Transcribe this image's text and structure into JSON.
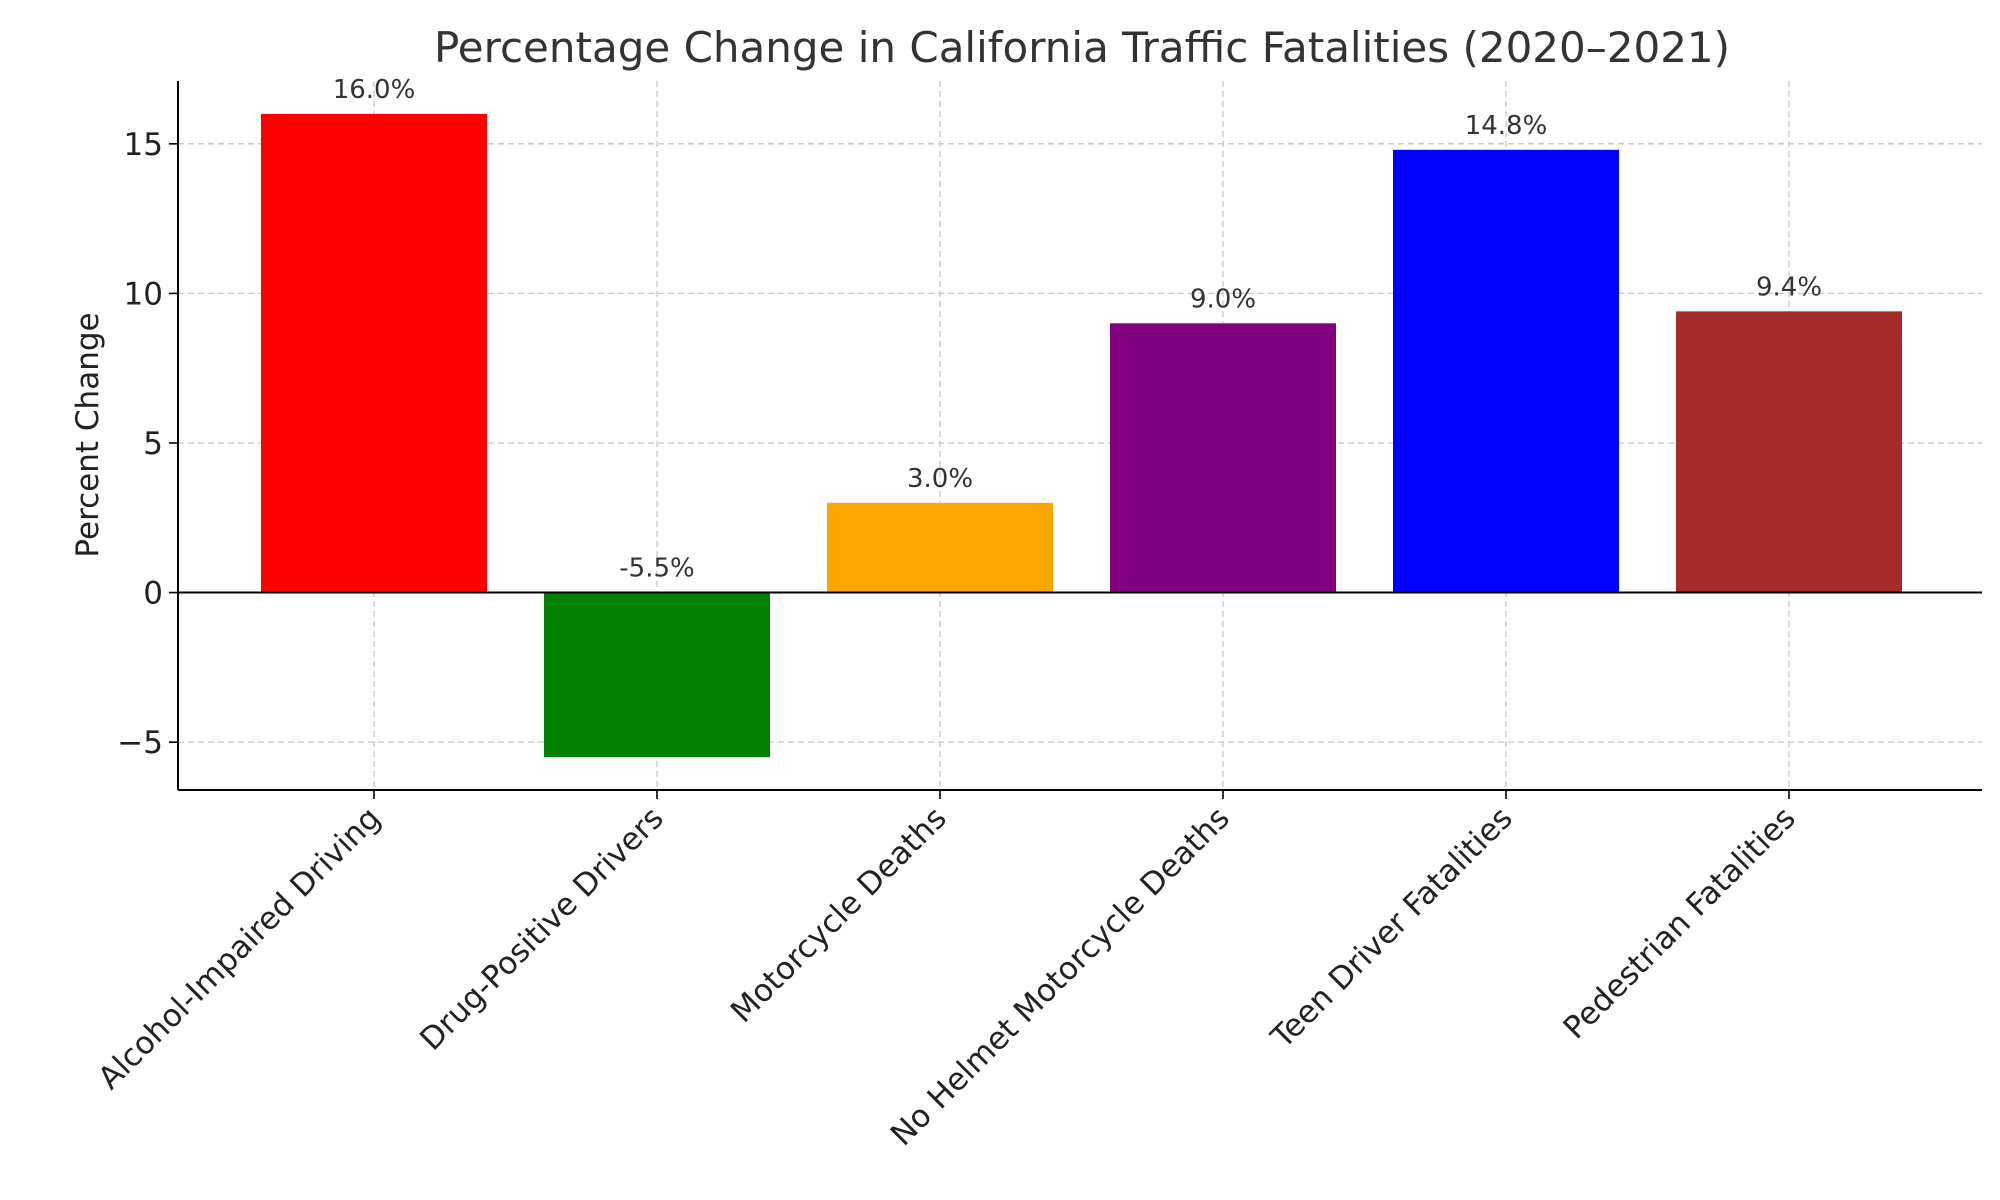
{
  "chart_data": {
    "type": "bar",
    "title": "Percentage Change in California Traffic Fatalities (2020–2021)",
    "xlabel": "",
    "ylabel": "Percent Change",
    "categories": [
      "Alcohol-Impaired Driving",
      "Drug-Positive Drivers",
      "Motorcycle Deaths",
      "No Helmet Motorcycle Deaths",
      "Teen Driver Fatalities",
      "Pedestrian Fatalities"
    ],
    "values": [
      16.0,
      -5.5,
      3.0,
      9.0,
      14.8,
      9.4
    ],
    "value_labels": [
      "16.0%",
      "-5.5%",
      "3.0%",
      "9.0%",
      "14.8%",
      "9.4%"
    ],
    "colors": [
      "#ff0000",
      "#008000",
      "#ffa500",
      "#800080",
      "#0000ff",
      "#a52a2a"
    ],
    "ylim": [
      -6.6,
      17.1
    ],
    "yticks": [
      -5,
      0,
      5,
      10,
      15
    ],
    "ytick_labels": [
      "−5",
      "0",
      "5",
      "10",
      "15"
    ],
    "grid": true,
    "zero_line": true
  }
}
